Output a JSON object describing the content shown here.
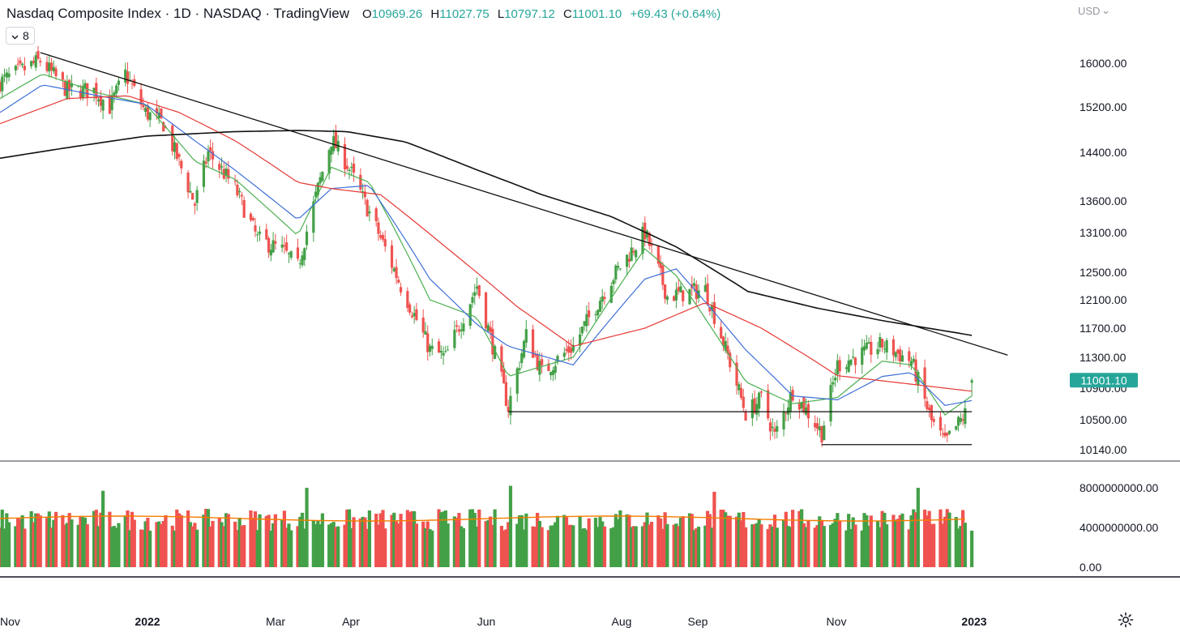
{
  "header": {
    "title": "Nasdaq Composite Index · 1D · NASDAQ · TradingView",
    "open_key": "O",
    "open": "10969.26",
    "high_key": "H",
    "high": "11027.75",
    "low_key": "L",
    "low": "10797.12",
    "close_key": "C",
    "close": "11001.10",
    "change": "+69.43 (+0.64%)"
  },
  "indicator_toggle": {
    "label": "8",
    "icon": "chevron-down-icon"
  },
  "currency_menu": {
    "label": "USD",
    "icon": "chevron-down-icon"
  },
  "settings": {
    "icon": "gear-icon"
  },
  "colors": {
    "up": "#43a047",
    "down": "#ef5350",
    "sma_short": "#4caf50",
    "sma_mid": "#3f6fd8",
    "sma_long": "#e53935",
    "sma_longest": "#111111",
    "trendline": "#111111",
    "volume_ma": "#f57c00",
    "last_price_tag": "#26a69a"
  },
  "chart_data": {
    "type": "candlestick",
    "symbol": "Nasdaq Composite Index",
    "interval": "1D",
    "price_axis_ticks": [
      16000,
      15200,
      14400,
      13600,
      13100,
      12500,
      12100,
      11700,
      11300,
      10900,
      10500,
      10140
    ],
    "price_axis_labels": [
      "16000.00",
      "15200.00",
      "14400.00",
      "13600.00",
      "13100.00",
      "12500.00",
      "12100.00",
      "11700.00",
      "11300.00",
      "10900.00",
      "10500.00",
      "10140.00"
    ],
    "volume_axis_labels": [
      "8000000000.00",
      "4000000000.00",
      "0.00"
    ],
    "volume_axis_ticks": [
      8000000000,
      4000000000,
      0
    ],
    "time_axis_labels": [
      {
        "label": "Nov",
        "bold": false
      },
      {
        "label": "2022",
        "bold": true
      },
      {
        "label": "Mar",
        "bold": false
      },
      {
        "label": "Apr",
        "bold": false
      },
      {
        "label": "Jun",
        "bold": false
      },
      {
        "label": "Aug",
        "bold": false
      },
      {
        "label": "Sep",
        "bold": false
      },
      {
        "label": "Nov",
        "bold": false
      },
      {
        "label": "2023",
        "bold": true
      }
    ],
    "last_price": "11001.10",
    "close_path": [
      [
        "2021-11-01",
        15650
      ],
      [
        "2021-11-19",
        16050
      ],
      [
        "2021-12-01",
        15500
      ],
      [
        "2021-12-13",
        15500
      ],
      [
        "2021-12-20",
        15200
      ],
      [
        "2021-12-27",
        15800
      ],
      [
        "2022-01-05",
        15100
      ],
      [
        "2022-01-13",
        14900
      ],
      [
        "2022-01-27",
        13550
      ],
      [
        "2022-02-02",
        14400
      ],
      [
        "2022-02-14",
        13800
      ],
      [
        "2022-02-24",
        13000
      ],
      [
        "2022-03-07",
        12830
      ],
      [
        "2022-03-14",
        12580
      ],
      [
        "2022-03-29",
        14620
      ],
      [
        "2022-04-05",
        14200
      ],
      [
        "2022-04-29",
        12300
      ],
      [
        "2022-05-12",
        11400
      ],
      [
        "2022-05-19",
        11300
      ],
      [
        "2022-06-02",
        12300
      ],
      [
        "2022-06-10",
        11340
      ],
      [
        "2022-06-16",
        10650
      ],
      [
        "2022-06-24",
        11600
      ],
      [
        "2022-07-01",
        11100
      ],
      [
        "2022-07-15",
        11450
      ],
      [
        "2022-08-01",
        12400
      ],
      [
        "2022-08-16",
        13100
      ],
      [
        "2022-08-26",
        12150
      ],
      [
        "2022-09-12",
        12250
      ],
      [
        "2022-09-30",
        10580
      ],
      [
        "2022-10-07",
        10760
      ],
      [
        "2022-10-13",
        10300
      ],
      [
        "2022-10-21",
        10860
      ],
      [
        "2022-11-03",
        10340
      ],
      [
        "2022-11-10",
        11200
      ],
      [
        "2022-11-30",
        11470
      ],
      [
        "2022-12-13",
        11250
      ],
      [
        "2022-12-22",
        10480
      ],
      [
        "2022-12-28",
        10210
      ],
      [
        "2023-01-06",
        10570
      ],
      [
        "2023-01-09",
        11001.1
      ]
    ],
    "moving_averages": [
      {
        "kind": "short",
        "points": [
          [
            "2021-11-01",
            15350
          ],
          [
            "2021-11-20",
            15800
          ],
          [
            "2021-12-15",
            15450
          ],
          [
            "2022-01-05",
            15250
          ],
          [
            "2022-01-27",
            14250
          ],
          [
            "2022-02-14",
            13950
          ],
          [
            "2022-03-14",
            13050
          ],
          [
            "2022-03-29",
            14150
          ],
          [
            "2022-04-15",
            13900
          ],
          [
            "2022-05-12",
            12100
          ],
          [
            "2022-06-02",
            11850
          ],
          [
            "2022-06-16",
            11050
          ],
          [
            "2022-07-15",
            11300
          ],
          [
            "2022-08-16",
            12850
          ],
          [
            "2022-08-30",
            12450
          ],
          [
            "2022-09-30",
            10980
          ],
          [
            "2022-10-21",
            10700
          ],
          [
            "2022-11-10",
            10780
          ],
          [
            "2022-11-30",
            11250
          ],
          [
            "2022-12-13",
            11200
          ],
          [
            "2022-12-28",
            10560
          ],
          [
            "2023-01-09",
            10800
          ]
        ]
      },
      {
        "kind": "mid",
        "points": [
          [
            "2021-11-01",
            15100
          ],
          [
            "2021-11-20",
            15600
          ],
          [
            "2021-12-15",
            15400
          ],
          [
            "2022-01-05",
            15250
          ],
          [
            "2022-01-27",
            14600
          ],
          [
            "2022-02-14",
            14100
          ],
          [
            "2022-03-14",
            13300
          ],
          [
            "2022-03-29",
            13800
          ],
          [
            "2022-04-15",
            13850
          ],
          [
            "2022-05-12",
            12400
          ],
          [
            "2022-06-02",
            11750
          ],
          [
            "2022-06-16",
            11450
          ],
          [
            "2022-07-15",
            11200
          ],
          [
            "2022-08-16",
            12400
          ],
          [
            "2022-08-30",
            12550
          ],
          [
            "2022-09-30",
            11400
          ],
          [
            "2022-10-21",
            10800
          ],
          [
            "2022-11-10",
            10750
          ],
          [
            "2022-11-30",
            11050
          ],
          [
            "2022-12-13",
            11100
          ],
          [
            "2022-12-28",
            10680
          ],
          [
            "2023-01-09",
            10740
          ]
        ]
      },
      {
        "kind": "long",
        "points": [
          [
            "2021-11-01",
            14900
          ],
          [
            "2021-12-01",
            15350
          ],
          [
            "2021-12-28",
            15400
          ],
          [
            "2022-01-20",
            15100
          ],
          [
            "2022-02-14",
            14600
          ],
          [
            "2022-03-14",
            13900
          ],
          [
            "2022-03-29",
            13800
          ],
          [
            "2022-04-20",
            13700
          ],
          [
            "2022-05-20",
            12850
          ],
          [
            "2022-06-20",
            12000
          ],
          [
            "2022-07-15",
            11450
          ],
          [
            "2022-08-16",
            11700
          ],
          [
            "2022-09-12",
            12060
          ],
          [
            "2022-10-07",
            11700
          ],
          [
            "2022-11-10",
            11060
          ],
          [
            "2022-12-01",
            10990
          ],
          [
            "2023-01-09",
            10860
          ]
        ]
      },
      {
        "kind": "longest",
        "points": [
          [
            "2021-11-01",
            14300
          ],
          [
            "2021-12-01",
            14480
          ],
          [
            "2022-01-05",
            14680
          ],
          [
            "2022-02-14",
            14760
          ],
          [
            "2022-03-14",
            14780
          ],
          [
            "2022-04-05",
            14760
          ],
          [
            "2022-05-01",
            14580
          ],
          [
            "2022-06-01",
            14120
          ],
          [
            "2022-07-01",
            13700
          ],
          [
            "2022-08-01",
            13350
          ],
          [
            "2022-08-30",
            12880
          ],
          [
            "2022-10-01",
            12220
          ],
          [
            "2022-11-01",
            11980
          ],
          [
            "2022-12-01",
            11800
          ],
          [
            "2023-01-09",
            11600
          ]
        ]
      }
    ],
    "trendlines": [
      {
        "from": [
          "2021-11-19",
          16200
        ],
        "to": [
          "2023-01-25",
          11330
        ]
      },
      {
        "from": [
          "2022-06-16",
          10600
        ],
        "to": [
          "2023-01-09",
          10600
        ]
      },
      {
        "from": [
          "2022-11-03",
          10200
        ],
        "to": [
          "2023-01-09",
          10200
        ]
      }
    ],
    "volume_average_level": 4900000000,
    "volume_spikes": [
      [
        "2021-12-17",
        7700000000
      ],
      [
        "2022-03-18",
        8000000000
      ],
      [
        "2022-06-17",
        8200000000
      ],
      [
        "2022-08-18",
        4300000000
      ],
      [
        "2022-09-16",
        7600000000
      ],
      [
        "2022-12-16",
        8000000000
      ]
    ]
  }
}
